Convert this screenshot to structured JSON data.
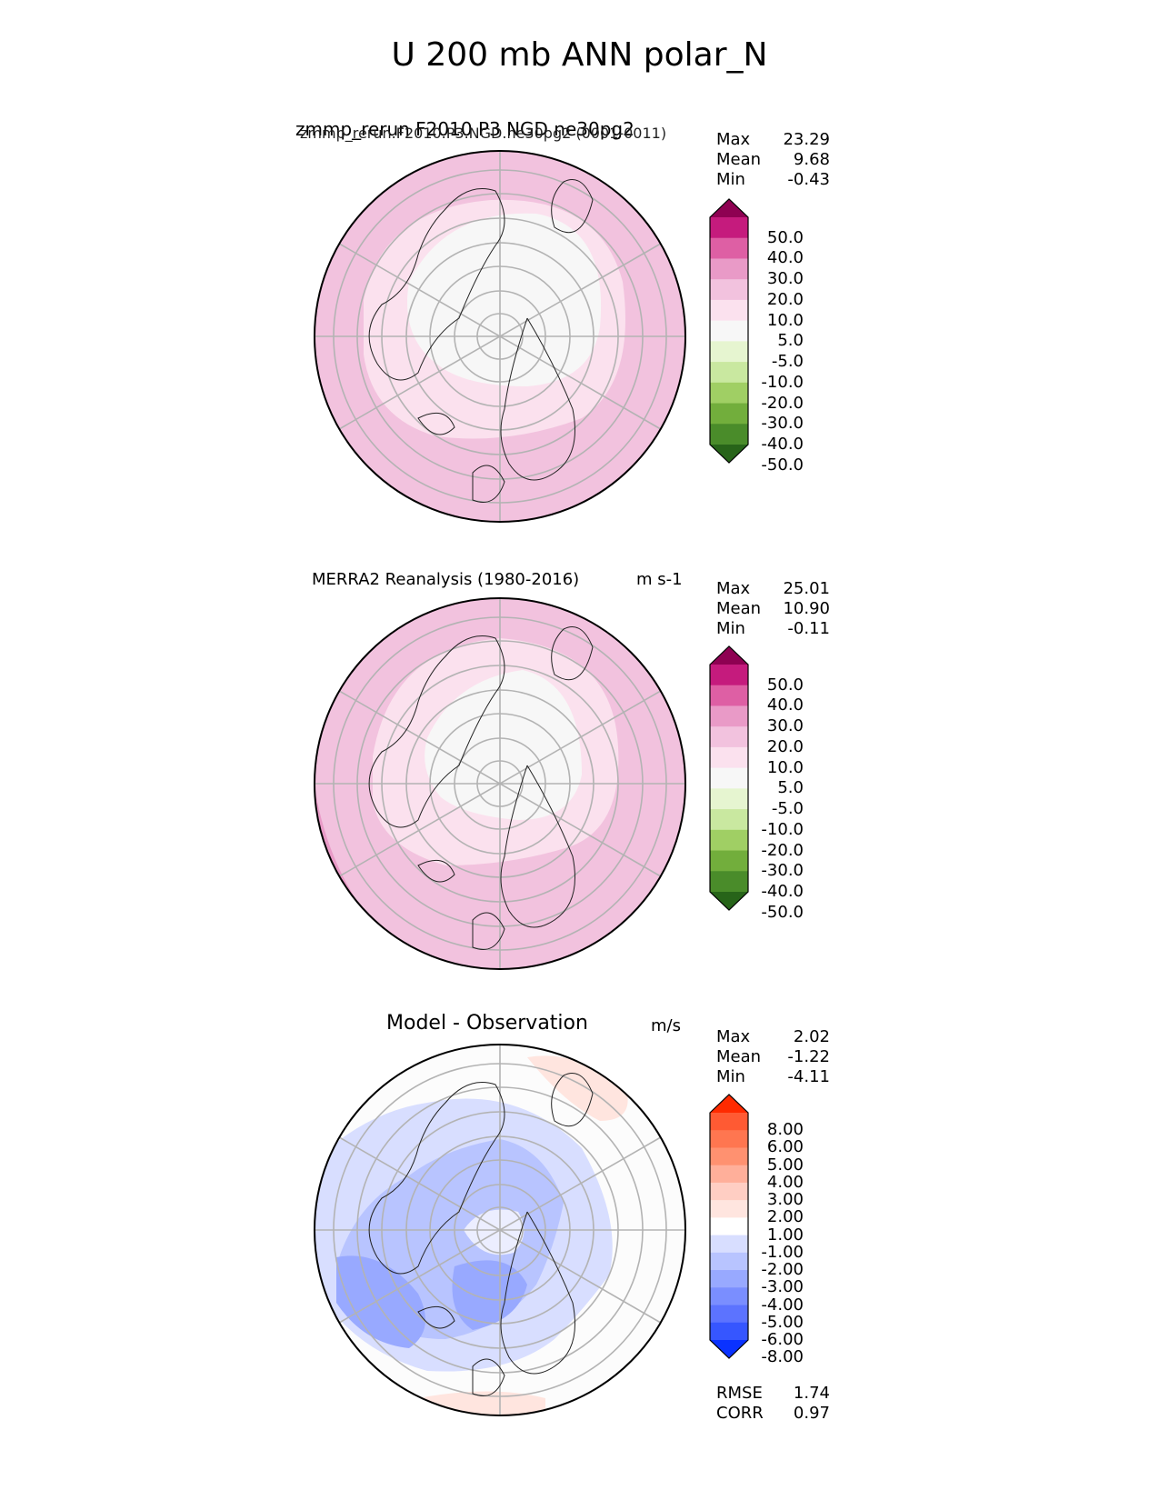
{
  "figure_title": "U 200 mb ANN polar_N",
  "panels": [
    {
      "title": "zmmp_rerun F2010 P3 NGD ne30pg2",
      "subtitle": "zmmp_rerun.F2010.P3.NGD.ne30pg2 (0001-0011)",
      "units": "",
      "stats": {
        "max_label": "Max",
        "max": "23.29",
        "mean_label": "Mean",
        "mean": "9.68",
        "min_label": "Min",
        "min": "-0.43"
      }
    },
    {
      "title": "MERRA2 Reanalysis (1980-2016)",
      "units": "m s-1",
      "stats": {
        "max_label": "Max",
        "max": "25.01",
        "mean_label": "Mean",
        "mean": "10.90",
        "min_label": "Min",
        "min": "-0.11"
      }
    },
    {
      "title": "Model - Observation",
      "units": "m/s",
      "stats": {
        "max_label": "Max",
        "max": "2.02",
        "mean_label": "Mean",
        "mean": "-1.22",
        "min_label": "Min",
        "min": "-4.11"
      },
      "rmse_label": "RMSE",
      "rmse": "1.74",
      "corr_label": "CORR",
      "corr": "0.97"
    }
  ],
  "colorbars": {
    "field": {
      "labels": [
        "50.0",
        "40.0",
        "30.0",
        "20.0",
        "10.0",
        "5.0",
        "-5.0",
        "-10.0",
        "-20.0",
        "-30.0",
        "-40.0",
        "-50.0"
      ],
      "colors": [
        "#8e0152",
        "#c51b7d",
        "#de5fa4",
        "#e99ac7",
        "#f2c2de",
        "#fbe1ee",
        "#f7f7f7",
        "#e6f5d0",
        "#c9e8a0",
        "#a0cf64",
        "#72ae3c",
        "#4a8c2a",
        "#276419"
      ]
    },
    "diff": {
      "labels": [
        "8.00",
        "6.00",
        "5.00",
        "4.00",
        "3.00",
        "2.00",
        "1.00",
        "-1.00",
        "-2.00",
        "-3.00",
        "-4.00",
        "-5.00",
        "-6.00",
        "-8.00"
      ],
      "colors": [
        "#ff2a00",
        "#ff5a33",
        "#ff7650",
        "#ff9170",
        "#ffaf9a",
        "#ffcec3",
        "#ffe5df",
        "#ffffff",
        "#d8deff",
        "#b8c4ff",
        "#98a9ff",
        "#7a8eff",
        "#5c73ff",
        "#3656ff",
        "#0a32ff"
      ]
    }
  },
  "chart_data": [
    {
      "type": "heatmap",
      "projection": "north-polar-stereographic",
      "title": "zmmp_rerun F2010 P3 NGD ne30pg2",
      "variable": "U 200 mb ANN",
      "levels": [
        -50,
        -40,
        -30,
        -20,
        -10,
        -5,
        5,
        10,
        20,
        30,
        40,
        50
      ],
      "max": 23.29,
      "mean": 9.68,
      "min": -0.43
    },
    {
      "type": "heatmap",
      "projection": "north-polar-stereographic",
      "title": "MERRA2 Reanalysis (1980-2016)",
      "units": "m s-1",
      "levels": [
        -50,
        -40,
        -30,
        -20,
        -10,
        -5,
        5,
        10,
        20,
        30,
        40,
        50
      ],
      "max": 25.01,
      "mean": 10.9,
      "min": -0.11
    },
    {
      "type": "heatmap",
      "projection": "north-polar-stereographic",
      "title": "Model - Observation",
      "units": "m/s",
      "levels": [
        -8,
        -6,
        -5,
        -4,
        -3,
        -2,
        -1,
        1,
        2,
        3,
        4,
        5,
        6,
        8
      ],
      "max": 2.02,
      "mean": -1.22,
      "min": -4.11,
      "rmse": 1.74,
      "corr": 0.97
    }
  ]
}
